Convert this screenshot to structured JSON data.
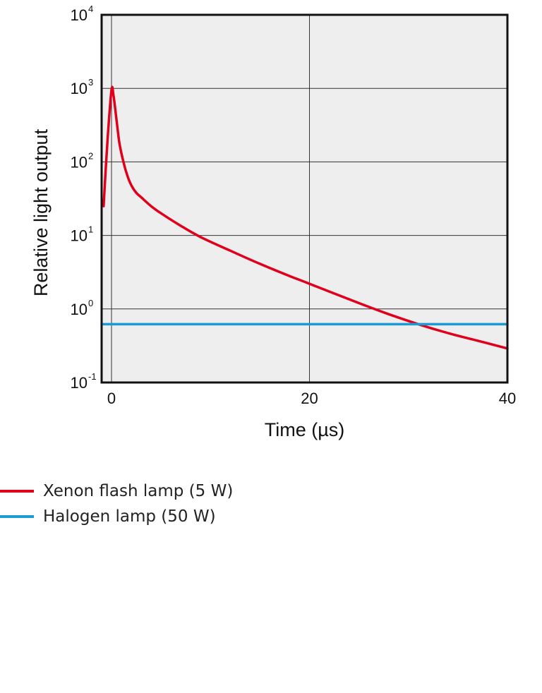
{
  "chart_data": {
    "type": "line",
    "xlabel": "Time (µs)",
    "ylabel": "Relative light output",
    "xlim": [
      -1,
      40
    ],
    "ylim": [
      0.1,
      10000
    ],
    "yscale": "log",
    "x_ticks": [
      0,
      20,
      40
    ],
    "y_ticks": [
      {
        "base": "10",
        "exp": "4"
      },
      {
        "base": "10",
        "exp": "3"
      },
      {
        "base": "10",
        "exp": "2"
      },
      {
        "base": "10",
        "exp": "1"
      },
      {
        "base": "10",
        "exp": "0"
      },
      {
        "base": "10",
        "exp": "-1"
      }
    ],
    "grid": true,
    "plot_background": "#eeeeee",
    "legend_position": "bottom-left",
    "series": [
      {
        "name": "Xenon flash lamp (5 W)",
        "color": "#e0001b",
        "x": [
          -0.8,
          -0.4,
          0,
          0.2,
          0.5,
          0.8,
          1.2,
          1.6,
          2,
          2.5,
          3,
          4,
          5,
          7,
          9,
          12,
          15,
          18,
          20,
          25,
          28,
          31,
          34,
          37,
          40
        ],
        "y": [
          25,
          200,
          950,
          800,
          380,
          180,
          100,
          65,
          48,
          38,
          33,
          25,
          20,
          13.5,
          9.5,
          6.2,
          4.1,
          2.8,
          2.2,
          1.2,
          0.85,
          0.62,
          0.47,
          0.37,
          0.29
        ]
      },
      {
        "name": "Halogen lamp (50 W)",
        "color": "#1a9ad6",
        "x": [
          -1,
          40
        ],
        "y": [
          0.62,
          0.62
        ]
      }
    ]
  }
}
